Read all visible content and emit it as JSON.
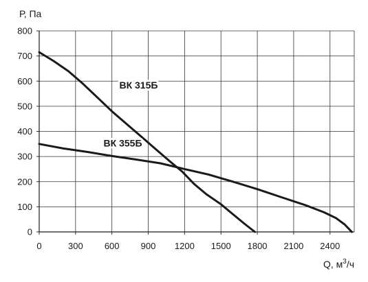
{
  "chart_data": {
    "type": "line",
    "ylabel": "Р, Па",
    "xlabel_main": "Q, м",
    "xlabel_sup": "3",
    "xlabel_tail": "/ч",
    "xlim": [
      0,
      2600
    ],
    "ylim": [
      0,
      800
    ],
    "xticks": [
      0,
      300,
      600,
      900,
      1200,
      1500,
      1800,
      2100,
      2400
    ],
    "yticks": [
      0,
      100,
      200,
      300,
      400,
      500,
      600,
      700,
      800
    ],
    "grid": true,
    "series": [
      {
        "name": "ВК 315Б",
        "x": [
          0,
          120,
          240,
          360,
          480,
          600,
          720,
          840,
          960,
          1080,
          1180,
          1280,
          1380,
          1500,
          1600,
          1700,
          1780
        ],
        "y": [
          715,
          680,
          640,
          590,
          535,
          480,
          430,
          380,
          330,
          280,
          240,
          190,
          150,
          110,
          70,
          30,
          0
        ]
      },
      {
        "name": "ВК 355Б",
        "x": [
          0,
          200,
          400,
          600,
          800,
          1000,
          1200,
          1400,
          1600,
          1800,
          2000,
          2200,
          2350,
          2450,
          2520,
          2580
        ],
        "y": [
          350,
          332,
          318,
          302,
          288,
          273,
          250,
          228,
          200,
          170,
          138,
          106,
          78,
          55,
          30,
          0
        ]
      }
    ]
  }
}
